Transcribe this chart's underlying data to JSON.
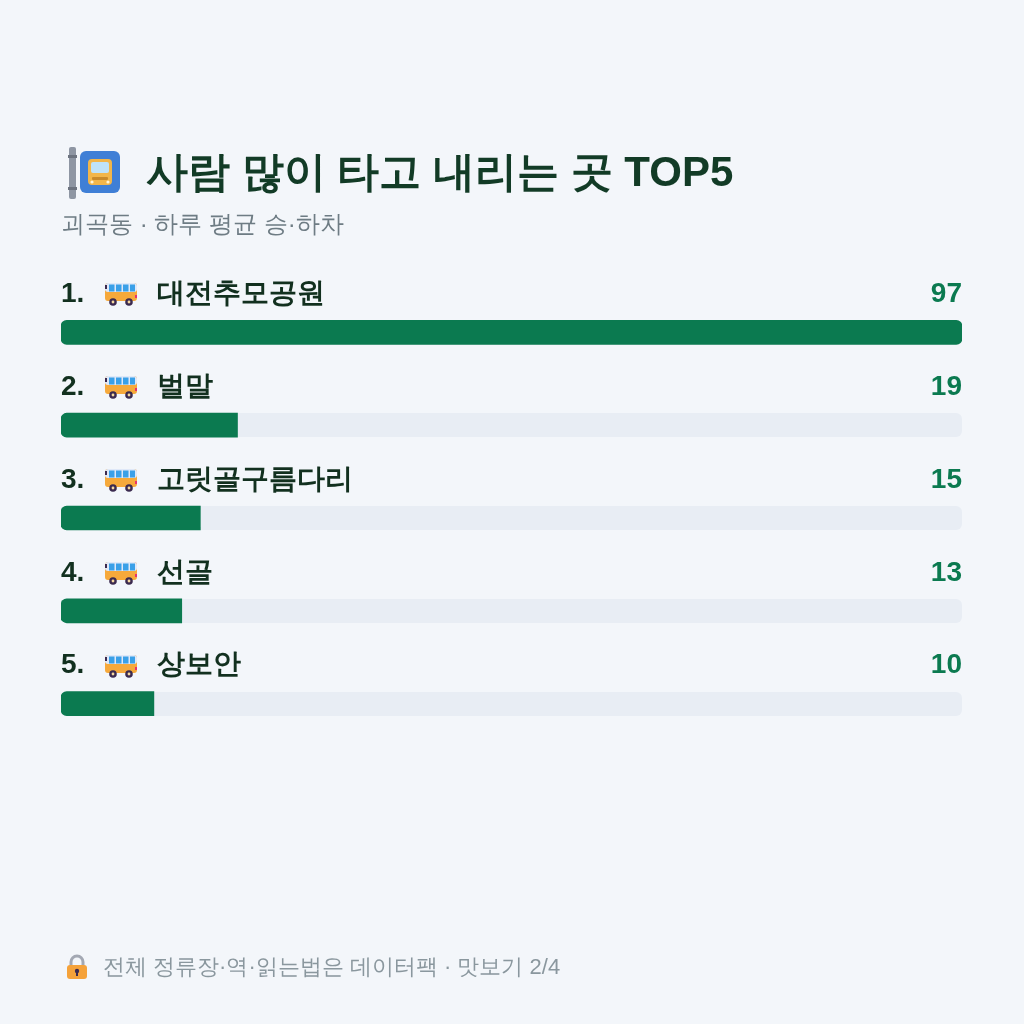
{
  "chart_data": {
    "type": "bar",
    "orientation": "horizontal",
    "title": "사람 많이 타고 내리는 곳 TOP5",
    "subtitle": "괴곡동 · 하루 평균 승·하차",
    "categories": [
      "1. 대전추모공원",
      "2. 벌말",
      "3. 고릿골구름다리",
      "4. 선골",
      "5. 상보안"
    ],
    "values": [
      97,
      19,
      15,
      13,
      10
    ],
    "color": "#0b7a50",
    "xlim": [
      0,
      97
    ],
    "data_labels": true,
    "annotations": [
      "전체 정류장·역·읽는법은 데이터팩 · 맛보기 2/4"
    ]
  }
}
